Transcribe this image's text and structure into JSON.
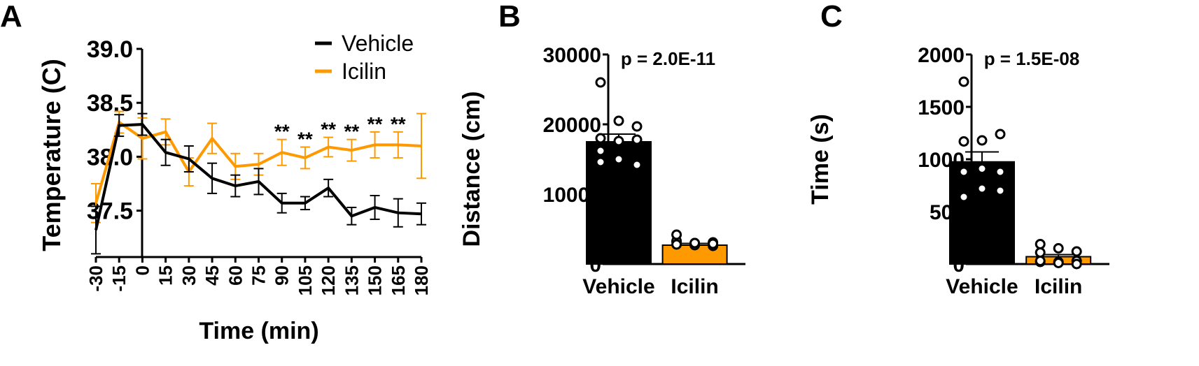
{
  "colors": {
    "vehicle": "#000000",
    "icilin": "#FF9900"
  },
  "chart_data": [
    {
      "panel": "A",
      "type": "line",
      "xlabel": "Time (min)",
      "ylabel": "Temperature (C)",
      "x": [
        -30,
        -15,
        0,
        15,
        30,
        45,
        60,
        75,
        90,
        105,
        120,
        135,
        150,
        165,
        180
      ],
      "x_tick_labels": [
        "-30",
        "-15",
        "0",
        "15",
        "30",
        "45",
        "60",
        "75",
        "90",
        "105",
        "120",
        "135",
        "150",
        "165",
        "180"
      ],
      "ylim": [
        37.07,
        39.0
      ],
      "y_ticks": [
        37.5,
        38.0,
        38.5,
        39.0
      ],
      "y_tick_labels": [
        "37.5",
        "38.0",
        "38.5",
        "39.0"
      ],
      "legend": "top-right",
      "series": [
        {
          "name": "Vehicle",
          "values": [
            37.32,
            38.29,
            38.3,
            38.04,
            37.98,
            37.8,
            37.73,
            37.77,
            37.57,
            37.57,
            37.71,
            37.45,
            37.53,
            37.48,
            37.47
          ],
          "errors": [
            0.22,
            0.1,
            0.1,
            0.12,
            0.12,
            0.14,
            0.1,
            0.12,
            0.09,
            0.06,
            0.08,
            0.08,
            0.11,
            0.13,
            0.1
          ]
        },
        {
          "name": "Icilin",
          "values": [
            37.57,
            38.32,
            38.17,
            38.23,
            37.86,
            38.17,
            37.91,
            37.93,
            38.04,
            37.99,
            38.09,
            38.06,
            38.11,
            38.11,
            38.1
          ],
          "errors": [
            0.18,
            0.1,
            0.19,
            0.12,
            0.13,
            0.14,
            0.12,
            0.1,
            0.12,
            0.1,
            0.09,
            0.1,
            0.12,
            0.12,
            0.3
          ]
        }
      ],
      "annotations": {
        "positions": [
          90,
          105,
          120,
          135,
          150,
          165
        ],
        "text": "**"
      }
    },
    {
      "panel": "B",
      "type": "bar",
      "categories": [
        "Vehicle",
        "Icilin"
      ],
      "values": [
        17500,
        2700
      ],
      "errors": [
        1100,
        250
      ],
      "points": [
        [
          26000,
          20500,
          19700,
          18000,
          17600,
          17800,
          16200,
          15000,
          14200,
          14600
        ],
        [
          3200,
          3000,
          3100,
          3300,
          2700,
          2600,
          2800,
          3000,
          2900,
          4200
        ]
      ],
      "ylabel": "Distance (cm)",
      "ylim": [
        0,
        30000
      ],
      "y_ticks": [
        0,
        10000,
        20000,
        30000
      ],
      "y_tick_labels": [
        "0",
        "10000",
        "20000",
        "30000"
      ],
      "annotation": "p = 2.0E-11"
    },
    {
      "panel": "C",
      "type": "bar",
      "categories": [
        "Vehicle",
        "Icilin"
      ],
      "values": [
        975,
        70
      ],
      "errors": [
        95,
        20
      ],
      "points": [
        [
          1740,
          1180,
          1240,
          1170,
          910,
          880,
          880,
          720,
          700,
          640
        ],
        [
          20,
          150,
          30,
          110,
          20,
          0,
          190,
          10,
          120,
          30
        ]
      ],
      "ylabel": "Time (s)",
      "ylim": [
        0,
        2000
      ],
      "y_ticks": [
        0,
        500,
        1000,
        1500,
        2000
      ],
      "y_tick_labels": [
        "0",
        "500",
        "1000",
        "1500",
        "2000"
      ],
      "annotation": "p = 1.5E-08"
    }
  ],
  "panel_labels": [
    "A",
    "B",
    "C"
  ]
}
